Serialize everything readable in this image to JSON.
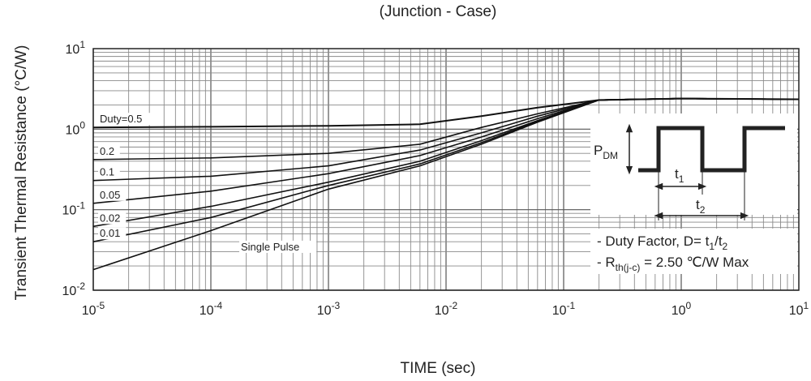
{
  "chart_data": {
    "type": "line",
    "title": "(Junction - Case)",
    "xlabel": "TIME (sec)",
    "ylabel": "Transient Thermal Resistance (°C/W)",
    "x_scale": "log",
    "y_scale": "log",
    "xlim": [
      1e-05,
      10
    ],
    "ylim": [
      0.01,
      10
    ],
    "grid": true,
    "x_ticks": [
      {
        "base": "10",
        "exp": "-5",
        "value": 1e-05
      },
      {
        "base": "10",
        "exp": "-4",
        "value": 0.0001
      },
      {
        "base": "10",
        "exp": "-3",
        "value": 0.001
      },
      {
        "base": "10",
        "exp": "-2",
        "value": 0.01
      },
      {
        "base": "10",
        "exp": "-1",
        "value": 0.1
      },
      {
        "base": "10",
        "exp": "0",
        "value": 1
      },
      {
        "base": "10",
        "exp": "1",
        "value": 10
      }
    ],
    "y_ticks": [
      {
        "base": "10",
        "exp": "-2",
        "value": 0.01
      },
      {
        "base": "10",
        "exp": "-1",
        "value": 0.1
      },
      {
        "base": "10",
        "exp": "0",
        "value": 1
      },
      {
        "base": "10",
        "exp": "1",
        "value": 10
      }
    ],
    "series": [
      {
        "name": "Duty=0.5",
        "x": [
          1e-05,
          0.0001,
          0.001,
          0.006,
          0.02,
          0.06,
          0.2,
          1,
          10
        ],
        "y": [
          1.05,
          1.07,
          1.1,
          1.15,
          1.45,
          1.85,
          2.3,
          2.4,
          2.35
        ]
      },
      {
        "name": "0.2",
        "x": [
          1e-05,
          0.0001,
          0.001,
          0.006,
          0.02,
          0.06,
          0.2,
          1,
          10
        ],
        "y": [
          0.42,
          0.44,
          0.5,
          0.65,
          1.05,
          1.55,
          2.3,
          2.4,
          2.35
        ]
      },
      {
        "name": "0.1",
        "x": [
          1e-05,
          0.0001,
          0.001,
          0.006,
          0.02,
          0.06,
          0.2,
          1,
          10
        ],
        "y": [
          0.23,
          0.26,
          0.35,
          0.55,
          0.9,
          1.45,
          2.3,
          2.4,
          2.35
        ]
      },
      {
        "name": "0.05",
        "x": [
          1e-05,
          0.0001,
          0.001,
          0.006,
          0.02,
          0.06,
          0.2,
          1,
          10
        ],
        "y": [
          0.12,
          0.17,
          0.28,
          0.47,
          0.8,
          1.35,
          2.3,
          2.4,
          2.35
        ]
      },
      {
        "name": "0.02",
        "x": [
          1e-05,
          0.0001,
          0.001,
          0.006,
          0.02,
          0.06,
          0.2,
          1,
          10
        ],
        "y": [
          0.062,
          0.11,
          0.22,
          0.4,
          0.72,
          1.28,
          2.3,
          2.4,
          2.35
        ]
      },
      {
        "name": "0.01",
        "x": [
          1e-05,
          0.0001,
          0.001,
          0.006,
          0.02,
          0.06,
          0.2,
          1,
          10
        ],
        "y": [
          0.04,
          0.08,
          0.2,
          0.37,
          0.68,
          1.25,
          2.3,
          2.4,
          2.35
        ]
      },
      {
        "name": "Single Pulse",
        "x": [
          1e-05,
          0.0001,
          0.001,
          0.006,
          0.02,
          0.06,
          0.2,
          1,
          10
        ],
        "y": [
          0.018,
          0.055,
          0.18,
          0.35,
          0.65,
          1.22,
          2.3,
          2.4,
          2.35
        ]
      }
    ],
    "annotations": {
      "pdm_base": "P",
      "pdm_sub": "DM",
      "t1_base": "t",
      "t1_sub": "1",
      "t2_base": "t",
      "t2_sub": "2",
      "duty_prefix": "- Duty Factor, D= t",
      "duty_sub1": "1",
      "duty_mid": "/t",
      "duty_sub2": "2",
      "rth_prefix": "- R",
      "rth_sub": "th(j-c)",
      "rth_suffix": " = 2.50 ℃/W Max"
    }
  }
}
